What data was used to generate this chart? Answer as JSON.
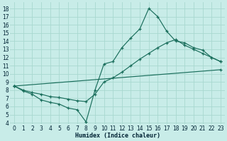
{
  "xlabel": "Humidex (Indice chaleur)",
  "bg_color": "#c8ece8",
  "grid_color": "#a8d8d0",
  "line_color": "#1a6e5c",
  "xlim": [
    -0.5,
    23.5
  ],
  "ylim": [
    3.8,
    18.8
  ],
  "xticks": [
    0,
    1,
    2,
    3,
    4,
    5,
    6,
    7,
    8,
    9,
    10,
    11,
    12,
    13,
    14,
    15,
    16,
    17,
    18,
    19,
    20,
    21,
    22,
    23
  ],
  "yticks": [
    4,
    5,
    6,
    7,
    8,
    9,
    10,
    11,
    12,
    13,
    14,
    15,
    16,
    17,
    18
  ],
  "line1_x": [
    0,
    1,
    2,
    3,
    4,
    5,
    6,
    7,
    8,
    9,
    10,
    11,
    12,
    13,
    14,
    15,
    16,
    17,
    18,
    19,
    20,
    21,
    22,
    23
  ],
  "line1_y": [
    8.5,
    7.9,
    7.5,
    6.8,
    6.5,
    6.3,
    5.8,
    5.6,
    4.1,
    8.0,
    11.2,
    11.5,
    13.2,
    14.4,
    15.5,
    18.0,
    17.0,
    15.2,
    14.0,
    13.8,
    13.2,
    12.9,
    12.0,
    11.5
  ],
  "line2_x": [
    0,
    1,
    2,
    3,
    4,
    5,
    6,
    7,
    8,
    9,
    10,
    11,
    12,
    13,
    14,
    15,
    16,
    17,
    18,
    19,
    20,
    21,
    22,
    23
  ],
  "line2_y": [
    8.5,
    8.0,
    7.7,
    7.5,
    7.2,
    7.1,
    6.9,
    6.7,
    6.6,
    7.5,
    9.0,
    9.5,
    10.2,
    11.0,
    11.8,
    12.5,
    13.2,
    13.8,
    14.2,
    13.5,
    13.0,
    12.5,
    12.0,
    11.5
  ],
  "line3_x": [
    0,
    23
  ],
  "line3_y": [
    8.5,
    10.5
  ]
}
